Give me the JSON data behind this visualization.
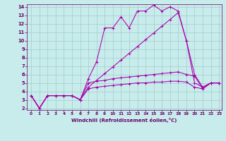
{
  "bg_color": "#c8ecec",
  "grid_color": "#a8d0d0",
  "line_color": "#aa00aa",
  "xlabel": "Windchill (Refroidissement éolien,°C)",
  "xlabel_color": "#660066",
  "tick_color": "#660066",
  "xlim": [
    0,
    23
  ],
  "ylim": [
    2,
    14
  ],
  "yticks": [
    2,
    3,
    4,
    5,
    6,
    7,
    8,
    9,
    10,
    11,
    12,
    13,
    14
  ],
  "xticks": [
    0,
    1,
    2,
    3,
    4,
    5,
    6,
    7,
    8,
    9,
    10,
    11,
    12,
    13,
    14,
    15,
    16,
    17,
    18,
    19,
    20,
    21,
    22,
    23
  ],
  "lines": [
    {
      "x": [
        0,
        1,
        2,
        3,
        4,
        5,
        6,
        7,
        8,
        9,
        10,
        11,
        12,
        13,
        14,
        15,
        16,
        17,
        18,
        19,
        20,
        21,
        22,
        23
      ],
      "y": [
        3.5,
        2.0,
        3.5,
        3.5,
        3.5,
        3.5,
        3.0,
        5.5,
        7.5,
        11.5,
        11.5,
        12.8,
        11.5,
        13.5,
        13.5,
        14.2,
        13.5,
        14.0,
        13.5,
        10.0,
        6.0,
        4.5,
        5.0,
        5.0
      ]
    },
    {
      "x": [
        0,
        1,
        2,
        3,
        4,
        5,
        6,
        7,
        8,
        9,
        10,
        11,
        12,
        13,
        14,
        15,
        16,
        17,
        18,
        19,
        20,
        21,
        22,
        23
      ],
      "y": [
        3.5,
        2.0,
        3.5,
        3.5,
        3.5,
        3.5,
        3.0,
        4.5,
        5.3,
        6.1,
        6.9,
        7.7,
        8.5,
        9.3,
        10.1,
        10.9,
        11.7,
        12.5,
        13.3,
        10.0,
        5.0,
        4.5,
        5.0,
        5.0
      ]
    },
    {
      "x": [
        0,
        1,
        2,
        3,
        4,
        5,
        6,
        7,
        8,
        9,
        10,
        11,
        12,
        13,
        14,
        15,
        16,
        17,
        18,
        19,
        20,
        21,
        22,
        23
      ],
      "y": [
        3.5,
        2.0,
        3.5,
        3.5,
        3.5,
        3.5,
        3.0,
        5.0,
        5.2,
        5.3,
        5.5,
        5.6,
        5.7,
        5.8,
        5.9,
        6.0,
        6.1,
        6.2,
        6.3,
        6.0,
        5.8,
        4.3,
        5.0,
        5.0
      ]
    },
    {
      "x": [
        0,
        1,
        2,
        3,
        4,
        5,
        6,
        7,
        8,
        9,
        10,
        11,
        12,
        13,
        14,
        15,
        16,
        17,
        18,
        19,
        20,
        21,
        22,
        23
      ],
      "y": [
        3.5,
        2.0,
        3.5,
        3.5,
        3.5,
        3.5,
        3.0,
        4.3,
        4.5,
        4.6,
        4.7,
        4.8,
        4.9,
        5.0,
        5.0,
        5.1,
        5.1,
        5.2,
        5.2,
        5.1,
        4.5,
        4.3,
        5.0,
        5.0
      ]
    }
  ]
}
